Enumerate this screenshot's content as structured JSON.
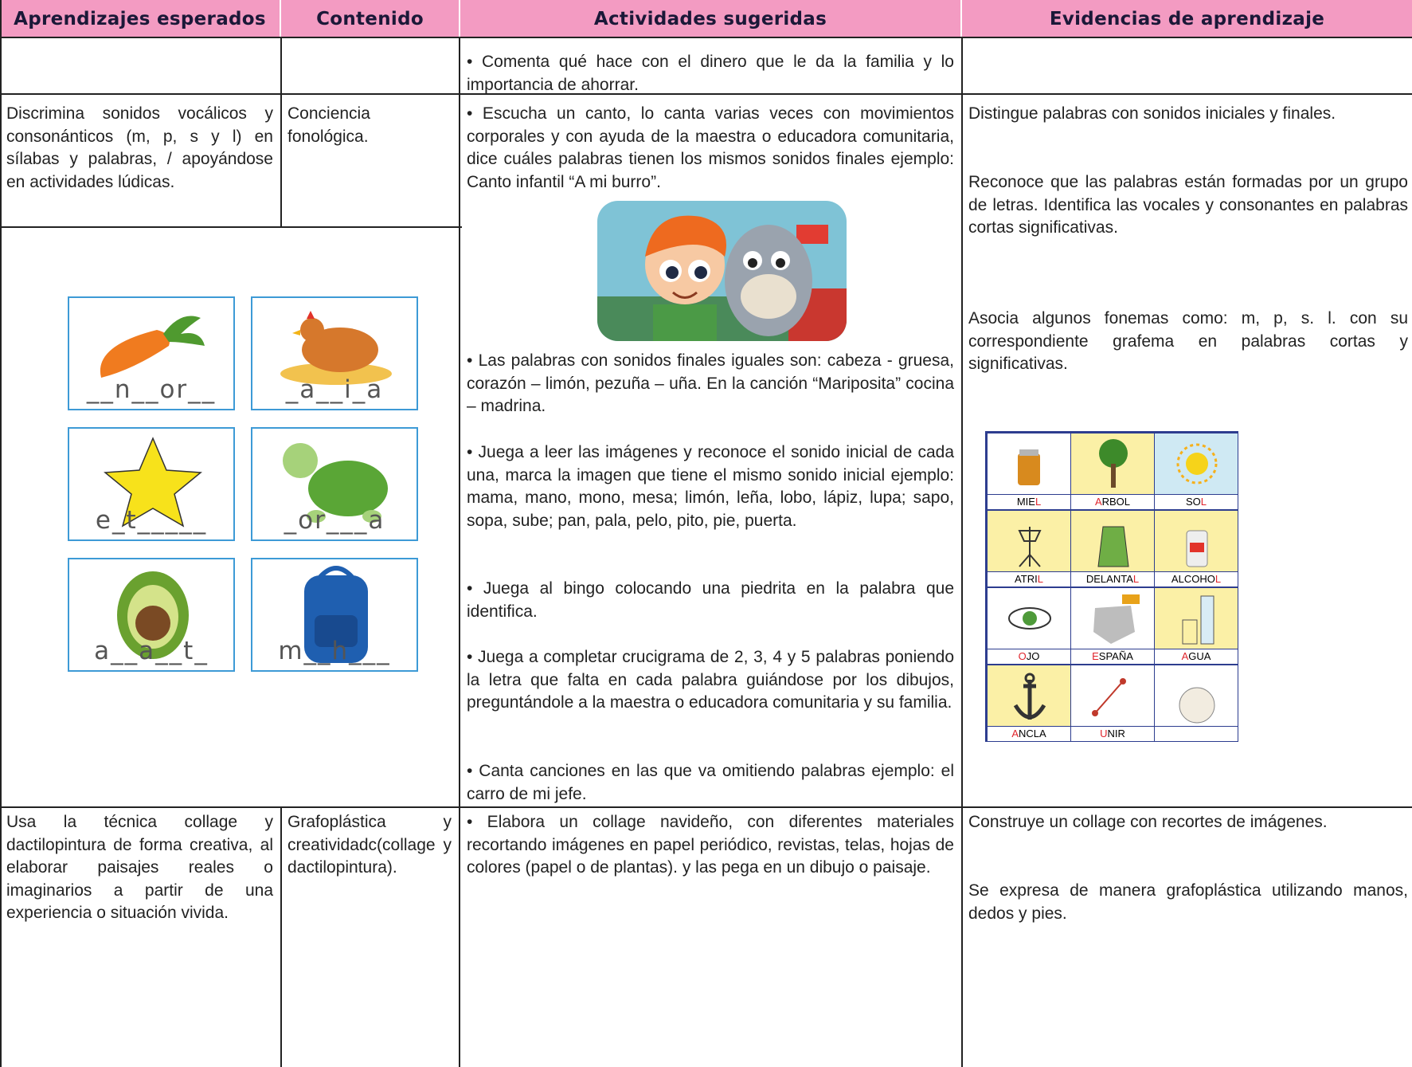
{
  "header": {
    "columns": [
      "Aprendizajes esperados",
      "Contenido",
      "Actividades sugeridas",
      "Evidencias de aprendizaje"
    ]
  },
  "rows": [
    {
      "activities": [
        "• Comenta qué hace con el dinero que le da la familia y lo importancia de ahorrar."
      ]
    },
    {
      "expected": "Discrimina sonidos vocálicos y consonánticos (m, p, s y l) en sílabas y palabras, / apoyándose en actividades lúdicas.",
      "content": "Conciencia fonológica.",
      "activities": [
        "• Escucha un canto, lo canta varias veces con movimientos corporales y con ayuda de la maestra o educadora comunitaria, dice cuáles palabras tienen los mismos sonidos finales ejemplo: Canto infantil “A mi burro”.",
        "• Las palabras con sonidos finales iguales son: cabeza - gruesa, corazón – limón, pezuña – uña. En la canción “Mariposita” cocina – madrina.",
        "• Juega a leer las imágenes y reconoce el sonido inicial de cada una, marca la imagen que tiene el mismo sonido inicial ejemplo: mama, mano, mono, mesa; limón, leña, lobo, lápiz, lupa; sapo, sopa, sube; pan, pala, pelo, pito, pie, puerta.",
        "• Juega al bingo colocando una piedrita en la palabra que identifica.",
        "• Juega a completar crucigrama de 2, 3, 4 y 5 palabras poniendo la letra que falta en cada palabra guiándose por los dibujos, preguntándole a la maestra o educadora comunitaria y su familia.",
        "• Canta canciones en las que va omitiendo palabras ejemplo: el carro de mi jefe."
      ],
      "evidence": [
        "Distingue palabras con sonidos iniciales y finales.",
        "Reconoce que las palabras están formadas por un grupo de letras. Identifica las vocales y consonantes en palabras cortas significativas.",
        "Asocia algunos fonemas como: m, p, s. l. con su correspondiente grafema en palabras cortas y significativas."
      ],
      "word_cards": [
        "__n__or__",
        "_a__i_a",
        "e_t_____",
        "_or___a",
        "a__a__t_",
        "m__h___"
      ],
      "pictograms": [
        [
          {
            "text": "MIE"
          },
          {
            "text": "L",
            "color": "#e0242b"
          }
        ],
        [
          {
            "text": "A",
            "color": "#e0242b"
          },
          {
            "text": "RBOL"
          }
        ],
        [
          {
            "text": "SO"
          },
          {
            "text": "L",
            "color": "#e0242b"
          }
        ],
        [
          {
            "text": "ATRI"
          },
          {
            "text": "L",
            "color": "#e0242b"
          }
        ],
        [
          {
            "text": "DELANTA"
          },
          {
            "text": "L",
            "color": "#e0242b"
          }
        ],
        [
          {
            "text": "ALCOHO"
          },
          {
            "text": "L",
            "color": "#e0242b"
          }
        ],
        [
          {
            "text": "O",
            "color": "#e0242b"
          },
          {
            "text": "JO"
          }
        ],
        [
          {
            "text": "E",
            "color": "#e0242b"
          },
          {
            "text": "SPAÑA"
          }
        ],
        [
          {
            "text": "A",
            "color": "#e0242b"
          },
          {
            "text": "GUA"
          }
        ],
        [
          {
            "text": "A",
            "color": "#e0242b"
          },
          {
            "text": "NCLA"
          }
        ],
        [
          {
            "text": "U",
            "color": "#e0242b"
          },
          {
            "text": "NIR"
          }
        ]
      ]
    },
    {
      "expected": "Usa la técnica collage y dactilopintura de forma creativa, al elaborar paisajes reales o imaginarios a partir de una experiencia o situación vivida.",
      "content": "Grafoplástica y creatividadc(collage y dactilopintura).",
      "activities": [
        "• Elabora un collage navideño, con diferentes materiales recortando imágenes en papel periódico, revistas, telas, hojas de colores (papel o de plantas). y las pega en un dibujo o paisaje."
      ],
      "evidence": [
        "Construye un collage con recortes de imágenes.",
        "Se expresa de manera grafoplástica utilizando manos, dedos y pies."
      ]
    }
  ]
}
